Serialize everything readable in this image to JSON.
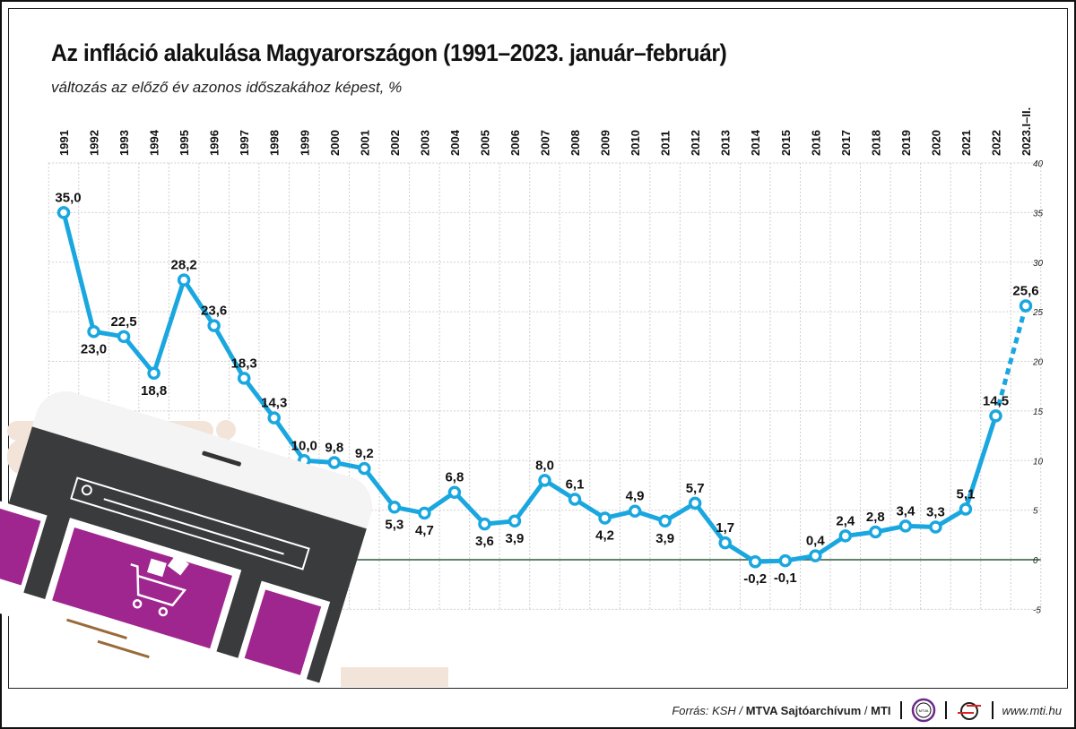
{
  "chart_data": {
    "type": "line",
    "title": "Az infláció alakulása Magyarországon (1991–2023. január–február)",
    "subtitle": "változás az előző év azonos időszakához képest, %",
    "categories": [
      "1991",
      "1992",
      "1993",
      "1994",
      "1995",
      "1996",
      "1997",
      "1998",
      "1999",
      "2000",
      "2001",
      "2002",
      "2003",
      "2004",
      "2005",
      "2006",
      "2007",
      "2008",
      "2009",
      "2010",
      "2011",
      "2012",
      "2013",
      "2014",
      "2015",
      "2016",
      "2017",
      "2018",
      "2019",
      "2020",
      "2021",
      "2022",
      "2023.I–II."
    ],
    "values": [
      35.0,
      23.0,
      22.5,
      18.8,
      28.2,
      23.6,
      18.3,
      14.3,
      10.0,
      9.8,
      9.2,
      5.3,
      4.7,
      6.8,
      3.6,
      3.9,
      8.0,
      6.1,
      4.2,
      4.9,
      3.9,
      5.7,
      1.7,
      -0.2,
      -0.1,
      0.4,
      2.4,
      2.8,
      3.4,
      3.3,
      5.1,
      14.5,
      25.6
    ],
    "value_labels": [
      "35,0",
      "23,0",
      "22,5",
      "18,8",
      "28,2",
      "23,6",
      "18,3",
      "14,3",
      "10,0",
      "9,8",
      "9,2",
      "5,3",
      "4,7",
      "6,8",
      "3,6",
      "3,9",
      "8,0",
      "6,1",
      "4,2",
      "4,9",
      "3,9",
      "5,7",
      "1,7",
      "-0,2",
      "-0,1",
      "0,4",
      "2,4",
      "2,8",
      "3,4",
      "3,3",
      "5,1",
      "14,5",
      "25,6"
    ],
    "ylim": [
      -5,
      40
    ],
    "yticks": [
      40,
      35,
      30,
      25,
      20,
      15,
      10,
      5,
      0,
      -5
    ],
    "ytick_labels": [
      "40",
      "35",
      "30",
      "25",
      "20",
      "15",
      "10",
      "5",
      "0",
      "-5"
    ],
    "y_axis_side": "right",
    "x_axis_side": "top",
    "grid": true,
    "last_segment_style": "dashed",
    "line_color": "#1aa7e0",
    "zero_line_color": "#2f5a3a"
  },
  "footer": {
    "source_prefix": "Forrás: KSH /",
    "source_bold": "MTVA Sajtóarchívum",
    "sep": "/",
    "mti": "MTI",
    "logo1_text": "MTVA",
    "url": "www.mti.hu"
  }
}
